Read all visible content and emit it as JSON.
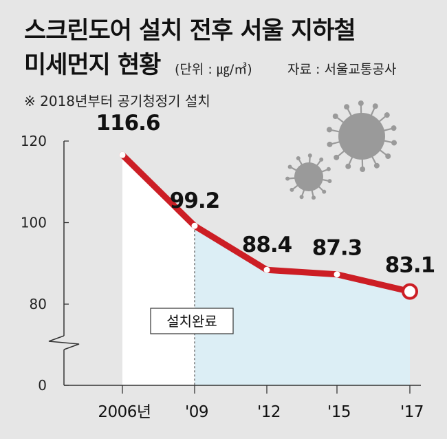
{
  "header": {
    "title_line1": "스크린도어 설치 전후 서울 지하철",
    "title_line2": "미세먼지 현황",
    "unit": "(단위 : ㎍/㎥)",
    "source": "자료 : 서울교통공사",
    "note": "※ 2018년부터 공기청정기 설치"
  },
  "chart_data": {
    "type": "line",
    "title": "스크린도어 설치 전후 서울 지하철 미세먼지 현황",
    "x": [
      2006,
      2009,
      2012,
      2015,
      2017
    ],
    "x_tick_labels": [
      "2006년",
      "'09",
      "'12",
      "'15",
      "'17"
    ],
    "series": [
      {
        "values": [
          116.6,
          99.2,
          88.4,
          87.3,
          83.1
        ],
        "labels": [
          "116.6",
          "99.2",
          "88.4",
          "87.3",
          "83.1"
        ]
      }
    ],
    "y_ticks": [
      0,
      80,
      100,
      120
    ],
    "ylim": [
      0,
      120
    ],
    "y_axis_break": true,
    "grid": false,
    "annotation": {
      "label": "설치완료",
      "at_x": 2009
    },
    "colors": {
      "line": "#cc1e25",
      "shade_before": "#ffffff",
      "shade_after": "#dceef5",
      "background": "#e6e6e6",
      "virus": "#9a9a9a"
    }
  }
}
